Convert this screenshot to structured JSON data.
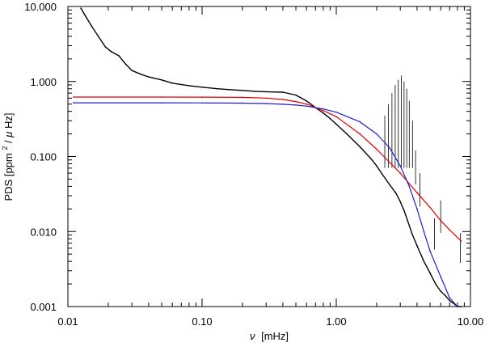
{
  "chart_data": {
    "type": "line",
    "title": "",
    "xlabel": "ν [mHz]",
    "xlabel_symbol": "ν",
    "xlabel_unit": "[mHz]",
    "ylabel": "PDS [ppm²/µHz]",
    "ylabel_prefix": "PDS [ppm",
    "ylabel_sup": "2",
    "ylabel_mu": "μ",
    "ylabel_suffix": "Hz]",
    "xscale": "log",
    "yscale": "log",
    "xlim": [
      0.01,
      10
    ],
    "ylim": [
      0.001,
      10
    ],
    "x_ticks": [
      {
        "value": 0.01,
        "label": "0.01"
      },
      {
        "value": 0.1,
        "label": "0.10"
      },
      {
        "value": 1,
        "label": "1.00"
      },
      {
        "value": 10,
        "label": "10.00"
      }
    ],
    "y_ticks": [
      {
        "value": 0.001,
        "label": "0.001"
      },
      {
        "value": 0.01,
        "label": "0.010"
      },
      {
        "value": 0.1,
        "label": "0.100"
      },
      {
        "value": 1,
        "label": "1.000"
      },
      {
        "value": 10,
        "label": "10.000"
      }
    ],
    "grid": false,
    "legend": "none",
    "series": [
      {
        "style": "observed power density spectrum",
        "color": "#000000",
        "x": [
          0.0125,
          0.0135,
          0.015,
          0.017,
          0.019,
          0.021,
          0.024,
          0.027,
          0.03,
          0.035,
          0.04,
          0.05,
          0.06,
          0.08,
          0.1,
          0.13,
          0.16,
          0.2,
          0.25,
          0.3,
          0.4,
          0.5,
          0.6,
          0.7,
          0.8,
          0.9,
          1.0,
          1.2,
          1.5,
          1.8,
          2.0,
          2.2,
          2.5,
          2.8,
          3.0,
          3.2,
          3.4,
          3.7,
          4.0,
          4.5,
          5.0,
          5.5,
          6.0,
          6.5,
          7.0,
          7.5,
          8.0,
          8.5
        ],
        "y": [
          9.5,
          7.5,
          5.5,
          3.9,
          2.9,
          2.5,
          2.2,
          1.7,
          1.4,
          1.25,
          1.15,
          1.05,
          0.95,
          0.88,
          0.84,
          0.8,
          0.78,
          0.76,
          0.74,
          0.73,
          0.72,
          0.66,
          0.55,
          0.45,
          0.38,
          0.32,
          0.27,
          0.2,
          0.135,
          0.095,
          0.075,
          0.058,
          0.042,
          0.032,
          0.025,
          0.019,
          0.014,
          0.009,
          0.0065,
          0.004,
          0.0028,
          0.002,
          0.0016,
          0.0014,
          0.0012,
          0.0011,
          0.001,
          0.001
        ]
      },
      {
        "style": "oscillation excess peaks",
        "color": "#000000",
        "x": [
          2.3,
          2.45,
          2.6,
          2.75,
          2.9,
          3.05,
          3.2,
          3.35,
          3.5,
          3.7,
          3.9,
          4.2,
          5.4,
          6.0,
          8.4
        ],
        "y": [
          0.35,
          0.5,
          0.7,
          0.9,
          1.05,
          1.2,
          1.0,
          0.8,
          0.55,
          0.3,
          0.12,
          0.06,
          0.015,
          0.026,
          0.0095
        ]
      },
      {
        "style": "fit model (red)",
        "color": "#e00000",
        "x": [
          0.011,
          0.05,
          0.1,
          0.2,
          0.3,
          0.4,
          0.5,
          0.6,
          0.8,
          1.0,
          1.5,
          2.0,
          3.0,
          4.0,
          5.0,
          6.0,
          7.0,
          8.5
        ],
        "y": [
          0.62,
          0.62,
          0.619,
          0.614,
          0.6,
          0.575,
          0.54,
          0.5,
          0.41,
          0.34,
          0.2,
          0.125,
          0.06,
          0.033,
          0.021,
          0.014,
          0.0105,
          0.0075
        ]
      },
      {
        "style": "fit model (blue)",
        "color": "#1f1fcc",
        "x": [
          0.011,
          0.05,
          0.1,
          0.2,
          0.3,
          0.4,
          0.5,
          0.6,
          0.8,
          1.0,
          1.5,
          2.0,
          2.5,
          3.0,
          3.5,
          4.0,
          4.5,
          5.0,
          6.0,
          7.0,
          8.0
        ],
        "y": [
          0.52,
          0.52,
          0.519,
          0.515,
          0.508,
          0.497,
          0.485,
          0.47,
          0.43,
          0.39,
          0.29,
          0.2,
          0.13,
          0.075,
          0.04,
          0.02,
          0.01,
          0.0055,
          0.0025,
          0.0013,
          0.001
        ]
      }
    ]
  }
}
